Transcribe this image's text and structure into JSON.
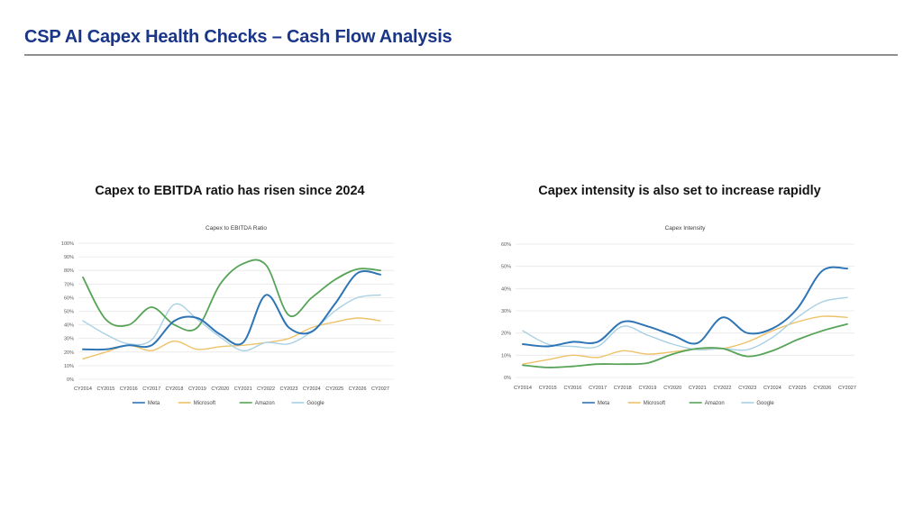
{
  "page": {
    "title": "CSP AI Capex Health Checks – Cash Flow Analysis"
  },
  "colors": {
    "title_navy": "#1A3688",
    "rule_gray": "#8F8F8F",
    "grid_gray": "#E7E7E7",
    "axis_text": "#595959",
    "meta_blue": "#2E75B6",
    "microsoft_gold": "#EEC269",
    "amazon_green": "#57A458",
    "google_lightblue": "#A8D0E4"
  },
  "chart_data": [
    {
      "type": "line",
      "section_heading": "Capex to EBITDA ratio has risen since 2024",
      "title": "Capex to EBITDA Ratio",
      "xlabel": "",
      "ylabel": "",
      "ylim": [
        0,
        100
      ],
      "ytick_step": 10,
      "ytick_suffix": "%",
      "grid": true,
      "legend_position": "bottom",
      "categories": [
        "CY2014",
        "CY2015",
        "CY2016",
        "CY2017",
        "CY2018",
        "CY2019",
        "CY2020",
        "CY2021",
        "CY2022",
        "CY2023",
        "CY2024",
        "CY2025",
        "CY2026",
        "CY2027"
      ],
      "series": [
        {
          "name": "Meta",
          "color": "#2E75B6",
          "width": 2.0,
          "values": [
            22,
            22,
            25,
            25,
            43,
            45,
            33,
            27,
            62,
            38,
            35,
            55,
            78,
            77
          ]
        },
        {
          "name": "Microsoft",
          "color": "#EEC269",
          "width": 1.4,
          "values": [
            15,
            20,
            25,
            21,
            28,
            22,
            24,
            25,
            27,
            30,
            38,
            42,
            45,
            43
          ]
        },
        {
          "name": "Amazon",
          "color": "#57A458",
          "width": 1.8,
          "values": [
            75,
            44,
            40,
            53,
            40,
            38,
            70,
            85,
            84,
            47,
            60,
            73,
            81,
            80
          ]
        },
        {
          "name": "Google",
          "color": "#A8D0E4",
          "width": 1.4,
          "values": [
            43,
            33,
            26,
            29,
            55,
            44,
            31,
            21,
            27,
            26,
            35,
            50,
            60,
            62
          ]
        }
      ]
    },
    {
      "type": "line",
      "section_heading": "Capex intensity is also set to increase rapidly",
      "title": "Capex Intensity",
      "xlabel": "",
      "ylabel": "",
      "ylim": [
        0,
        60
      ],
      "ytick_step": 10,
      "ytick_suffix": "%",
      "grid": true,
      "legend_position": "bottom",
      "categories": [
        "CY2014",
        "CY2015",
        "CY2016",
        "CY2017",
        "CY2018",
        "CY2019",
        "CY2020",
        "CY2021",
        "CY2022",
        "CY2023",
        "CY2024",
        "CY2025",
        "CY2026",
        "CY2027"
      ],
      "series": [
        {
          "name": "Meta",
          "color": "#2E75B6",
          "width": 2.0,
          "values": [
            15,
            14,
            16,
            16,
            25,
            23,
            19,
            15.5,
            27,
            20,
            22,
            31,
            48,
            49
          ]
        },
        {
          "name": "Microsoft",
          "color": "#EEC269",
          "width": 1.4,
          "values": [
            6,
            8,
            10,
            9,
            12,
            10.5,
            11.5,
            13,
            13,
            16,
            21,
            25,
            27.5,
            27
          ]
        },
        {
          "name": "Amazon",
          "color": "#57A458",
          "width": 1.8,
          "values": [
            5.5,
            4.5,
            5,
            6,
            6,
            6.5,
            10.5,
            13,
            13,
            9.5,
            12,
            17,
            21,
            24
          ]
        },
        {
          "name": "Google",
          "color": "#A8D0E4",
          "width": 1.4,
          "values": [
            21,
            15,
            14,
            14,
            23,
            19,
            15,
            12.5,
            13,
            12.5,
            18,
            27,
            34,
            36
          ]
        }
      ]
    }
  ]
}
